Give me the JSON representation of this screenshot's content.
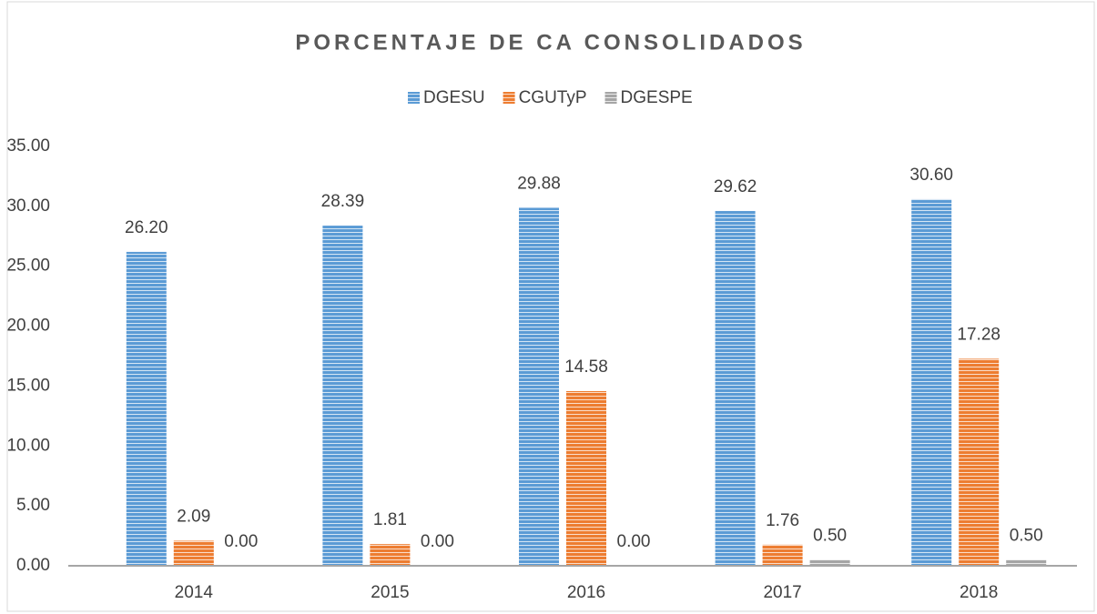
{
  "chart_data": {
    "type": "bar",
    "title": "PORCENTAJE DE CA CONSOLIDADOS",
    "categories": [
      "2014",
      "2015",
      "2016",
      "2017",
      "2018"
    ],
    "series": [
      {
        "name": "DGESU",
        "color": "#5b9bd5",
        "values": [
          26.2,
          28.39,
          29.88,
          29.62,
          30.6
        ],
        "value_labels": [
          "26.20",
          "28.39",
          "29.88",
          "29.62",
          "30.60"
        ]
      },
      {
        "name": "CGUTyP",
        "color": "#ed7d31",
        "values": [
          2.09,
          1.81,
          14.58,
          1.76,
          17.28
        ],
        "value_labels": [
          "2.09",
          "1.81",
          "14.58",
          "1.76",
          "17.28"
        ]
      },
      {
        "name": "DGESPE",
        "color": "#a5a5a5",
        "values": [
          0,
          0,
          0,
          0.5,
          0.5
        ],
        "value_labels": [
          "0.00",
          "0.00",
          "0.00",
          "0.50",
          "0.50"
        ]
      }
    ],
    "ylim": [
      0,
      35
    ],
    "yticks": [
      {
        "value": 0,
        "label": "0.00"
      },
      {
        "value": 5,
        "label": "5.00"
      },
      {
        "value": 10,
        "label": "10.00"
      },
      {
        "value": 15,
        "label": "15.00"
      },
      {
        "value": 20,
        "label": "20.00"
      },
      {
        "value": 25,
        "label": "25.00"
      },
      {
        "value": 30,
        "label": "30.00"
      },
      {
        "value": 35,
        "label": "35.00"
      }
    ],
    "legend": "top",
    "grid": false
  }
}
